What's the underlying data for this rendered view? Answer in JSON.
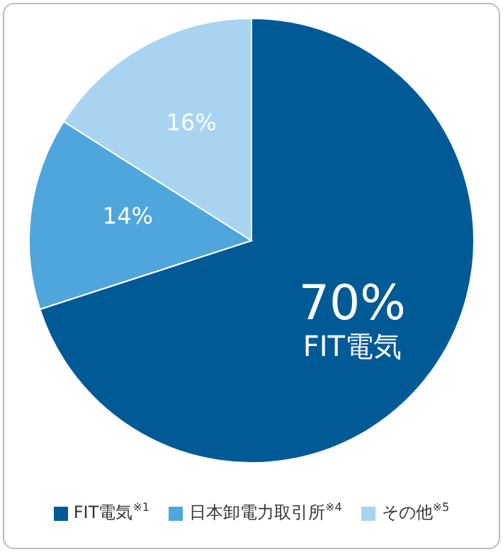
{
  "chart_data": {
    "type": "pie",
    "categories": [
      "FIT電気$^{※1}$",
      "日本卸電力取引所$^{※4}$",
      "その他$^{※5}$"
    ],
    "values": [
      70,
      14,
      16
    ],
    "colors": [
      "#005a96",
      "#4ea6dc",
      "#a8d4f2"
    ],
    "value_labels": [
      "70%",
      "14%",
      "16%"
    ],
    "annotations": [
      "FIT電気"
    ],
    "legend": "bottom"
  }
}
